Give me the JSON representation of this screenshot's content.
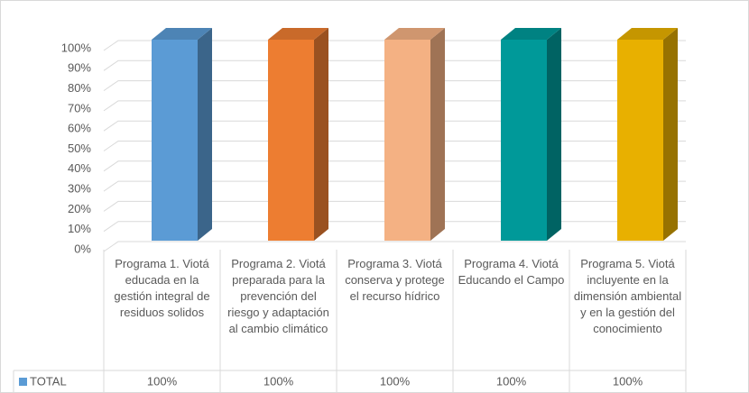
{
  "chart_data": {
    "type": "bar3d",
    "categories": [
      "Programa 1. Viotá educada en la gestión integral de residuos solidos",
      "Programa 2. Viotá preparada para la prevención del riesgo y adaptación al cambio climático",
      "Programa 3. Viotá conserva y protege el recurso hídrico",
      "Programa 4. Viotá Educando el Campo",
      "Programa 5. Viotá incluyente en la dimensión ambiental y en la gestión del conocimiento"
    ],
    "series": [
      {
        "name": "TOTAL",
        "color": "#5b9bd5",
        "colors": [
          "#5b9bd5",
          "#ed7d31",
          "#f4b183",
          "#009999",
          "#e8b000"
        ],
        "values": [
          100,
          100,
          100,
          100,
          100
        ],
        "value_labels": [
          "100%",
          "100%",
          "100%",
          "100%",
          "100%"
        ]
      }
    ],
    "ylim": [
      0,
      100
    ],
    "yticks": [
      {
        "value": 0,
        "label": "0%"
      },
      {
        "value": 10,
        "label": "10%"
      },
      {
        "value": 20,
        "label": "20%"
      },
      {
        "value": 30,
        "label": "30%"
      },
      {
        "value": 40,
        "label": "40%"
      },
      {
        "value": 50,
        "label": "50%"
      },
      {
        "value": 60,
        "label": "60%"
      },
      {
        "value": 70,
        "label": "70%"
      },
      {
        "value": 80,
        "label": "80%"
      },
      {
        "value": 90,
        "label": "90%"
      },
      {
        "value": 100,
        "label": "100%"
      }
    ],
    "grid": true,
    "data_table": true
  }
}
